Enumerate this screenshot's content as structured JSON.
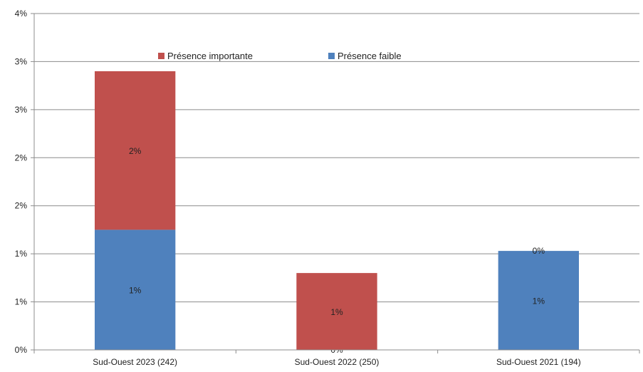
{
  "chart_data": {
    "type": "bar",
    "stacked": true,
    "title": "",
    "xlabel": "",
    "ylabel": "",
    "categories": [
      "Sud-Ouest 2023 (242)",
      "Sud-Ouest 2022 (250)",
      "Sud-Ouest 2021 (194)"
    ],
    "series": [
      {
        "name": "Présence faible",
        "color": "#4f81bd",
        "values": [
          1.25,
          0.0,
          1.03
        ],
        "labels": [
          "1%",
          "0%",
          "1%"
        ]
      },
      {
        "name": "Présence importante",
        "color": "#c0504d",
        "values": [
          1.65,
          0.8,
          0.0
        ],
        "labels": [
          "2%",
          "1%",
          "0%"
        ]
      }
    ],
    "legend": {
      "placement": "top-center",
      "entries": [
        {
          "name": "Présence importante",
          "color": "#c0504d"
        },
        {
          "name": "Présence faible",
          "color": "#4f81bd"
        }
      ]
    },
    "ylim": [
      0,
      3.5
    ],
    "ytick_values": [
      0,
      0.5,
      1.0,
      1.5,
      2.0,
      2.5,
      3.0,
      3.5
    ],
    "ytick_labels": [
      "0%",
      "1%",
      "1%",
      "2%",
      "2%",
      "3%",
      "3%",
      "4%"
    ],
    "grid": true
  }
}
